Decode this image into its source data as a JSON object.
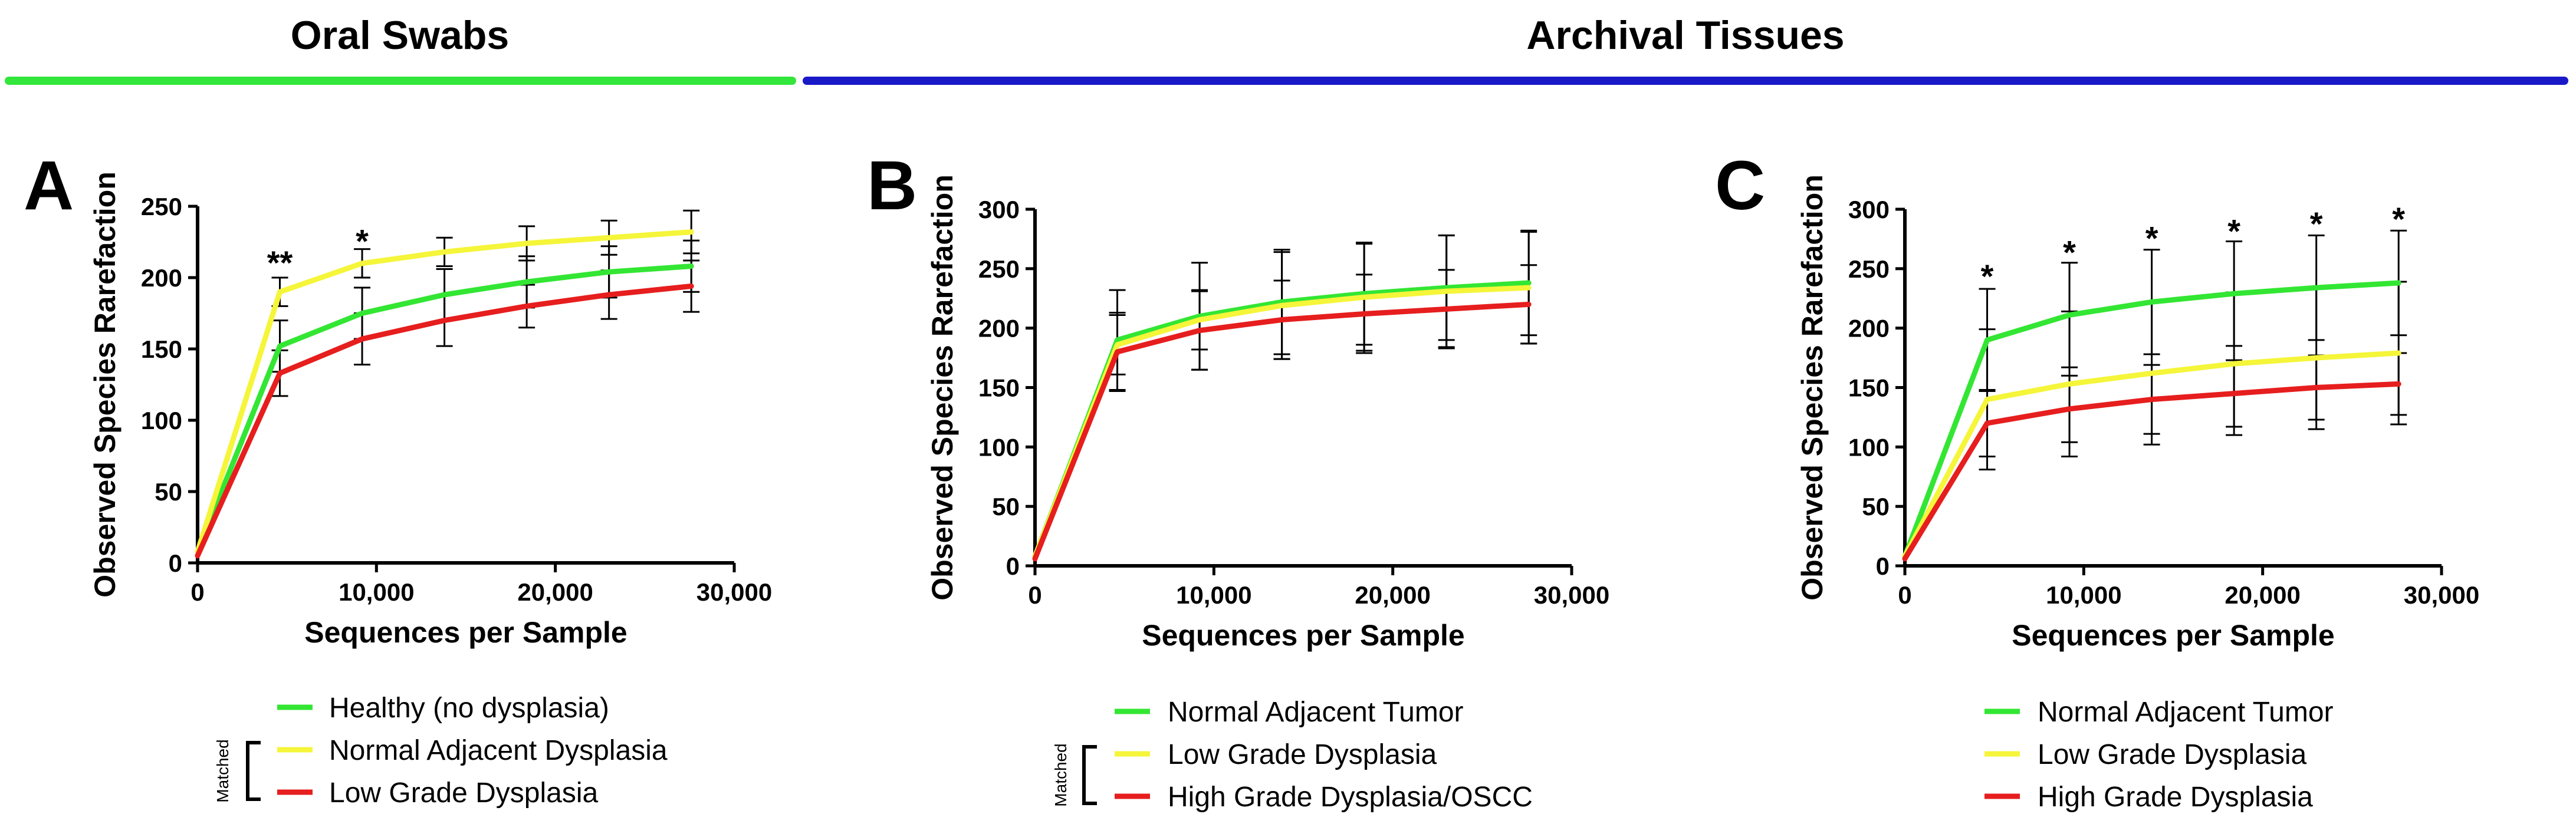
{
  "sections": [
    {
      "title": "Oral Swabs",
      "color": "#33e63c"
    },
    {
      "title": "Archival Tissues",
      "color": "#1919c8"
    }
  ],
  "colors": {
    "green": "#33e633",
    "yellow": "#f5f53a",
    "red": "#e61e1e",
    "black": "#000000"
  },
  "chart_data": [
    {
      "type": "line",
      "panel": "A",
      "title": "",
      "xlabel": "Sequences per Sample",
      "ylabel": "Observed Species Rarefaction",
      "xlim": [
        0,
        30000
      ],
      "ylim": [
        0,
        250
      ],
      "xticks": [
        0,
        10000,
        20000,
        30000
      ],
      "xtick_labels": [
        "0",
        "10,000",
        "20,000",
        "30,000"
      ],
      "yticks": [
        0,
        50,
        100,
        150,
        200,
        250
      ],
      "ytick_labels": [
        "0",
        "50",
        "100",
        "150",
        "200",
        "250"
      ],
      "x": [
        0,
        4600,
        9200,
        13800,
        18400,
        23000,
        27600
      ],
      "series": [
        {
          "name": "Healthy (no dysplasia)",
          "color": "green",
          "values": [
            8,
            152,
            175,
            188,
            197,
            204,
            208
          ],
          "err": [
            0,
            18,
            18,
            18,
            18,
            18,
            18
          ]
        },
        {
          "name": "Normal Adjacent Dysplasia",
          "color": "yellow",
          "values": [
            8,
            190,
            210,
            218,
            224,
            228,
            232
          ],
          "err": [
            0,
            10,
            10,
            10,
            12,
            12,
            15
          ]
        },
        {
          "name": "Low Grade Dysplasia",
          "color": "red",
          "values": [
            5,
            133,
            157,
            170,
            180,
            188,
            194
          ],
          "err": [
            0,
            16,
            18,
            18,
            15,
            17,
            18
          ]
        }
      ],
      "annotations": [
        {
          "text": "**",
          "x": 4600,
          "y": 210
        },
        {
          "text": "*",
          "x": 9200,
          "y": 225
        }
      ],
      "legend": {
        "position": "bottom",
        "items": [
          "Healthy (no dysplasia)",
          "Normal Adjacent Dysplasia",
          "Low Grade Dysplasia"
        ],
        "bracket_label": "Matched"
      }
    },
    {
      "type": "line",
      "panel": "B",
      "title": "",
      "xlabel": "Sequences per Sample",
      "ylabel": "Observed Species Rarefaction",
      "xlim": [
        0,
        30000
      ],
      "ylim": [
        0,
        300
      ],
      "xticks": [
        0,
        10000,
        20000,
        30000
      ],
      "xtick_labels": [
        "0",
        "10,000",
        "20,000",
        "30,000"
      ],
      "yticks": [
        0,
        50,
        100,
        150,
        200,
        250,
        300
      ],
      "ytick_labels": [
        "0",
        "50",
        "100",
        "150",
        "200",
        "250",
        "300"
      ],
      "x": [
        0,
        4600,
        9200,
        13800,
        18400,
        23000,
        27600
      ],
      "series": [
        {
          "name": "Normal Adjacent Tumor",
          "color": "green",
          "values": [
            8,
            190,
            210,
            222,
            229,
            234,
            238
          ],
          "err": [
            0,
            42,
            45,
            44,
            43,
            44,
            44
          ]
        },
        {
          "name": "Low Grade Dysplasia",
          "color": "yellow",
          "values": [
            8,
            186,
            207,
            219,
            226,
            231,
            234
          ],
          "err": [
            0,
            25,
            25,
            45,
            45,
            47,
            47
          ]
        },
        {
          "name": "High Grade Dysplasia/OSCC",
          "color": "red",
          "values": [
            6,
            180,
            198,
            207,
            212,
            216,
            220
          ],
          "err": [
            0,
            33,
            33,
            33,
            33,
            33,
            33
          ]
        }
      ],
      "annotations": [],
      "legend": {
        "position": "bottom",
        "items": [
          "Normal Adjacent Tumor",
          "Low Grade Dysplasia",
          "High Grade Dysplasia/OSCC"
        ],
        "bracket_label": "Matched"
      }
    },
    {
      "type": "line",
      "panel": "C",
      "title": "",
      "xlabel": "Sequences per Sample",
      "ylabel": "Observed Species Rarefaction",
      "xlim": [
        0,
        30000
      ],
      "ylim": [
        0,
        300
      ],
      "xticks": [
        0,
        10000,
        20000,
        30000
      ],
      "xtick_labels": [
        "0",
        "10,000",
        "20,000",
        "30,000"
      ],
      "yticks": [
        0,
        50,
        100,
        150,
        200,
        250,
        300
      ],
      "ytick_labels": [
        "0",
        "50",
        "100",
        "150",
        "200",
        "250",
        "300"
      ],
      "x": [
        0,
        4600,
        9200,
        13800,
        18400,
        23000,
        27600
      ],
      "series": [
        {
          "name": "Normal Adjacent Tumor",
          "color": "green",
          "values": [
            8,
            190,
            211,
            222,
            229,
            234,
            238
          ],
          "err": [
            0,
            43,
            44,
            44,
            44,
            44,
            44
          ]
        },
        {
          "name": "Low Grade Dysplasia",
          "color": "yellow",
          "values": [
            8,
            140,
            153,
            162,
            170,
            175,
            179
          ],
          "err": [
            0,
            59,
            61,
            60,
            60,
            60,
            60
          ]
        },
        {
          "name": "High Grade Dysplasia",
          "color": "red",
          "values": [
            6,
            120,
            132,
            140,
            145,
            150,
            153
          ],
          "err": [
            0,
            28,
            28,
            29,
            28,
            27,
            26
          ]
        }
      ],
      "annotations": [
        {
          "text": "*",
          "x": 4600,
          "y": 243
        },
        {
          "text": "*",
          "x": 9200,
          "y": 263
        },
        {
          "text": "*",
          "x": 13800,
          "y": 275
        },
        {
          "text": "*",
          "x": 18400,
          "y": 281
        },
        {
          "text": "*",
          "x": 23000,
          "y": 287
        },
        {
          "text": "*",
          "x": 27600,
          "y": 291
        }
      ],
      "legend": {
        "position": "bottom",
        "items": [
          "Normal Adjacent Tumor",
          "Low Grade Dysplasia",
          "High Grade Dysplasia"
        ],
        "bracket_label": ""
      }
    }
  ]
}
